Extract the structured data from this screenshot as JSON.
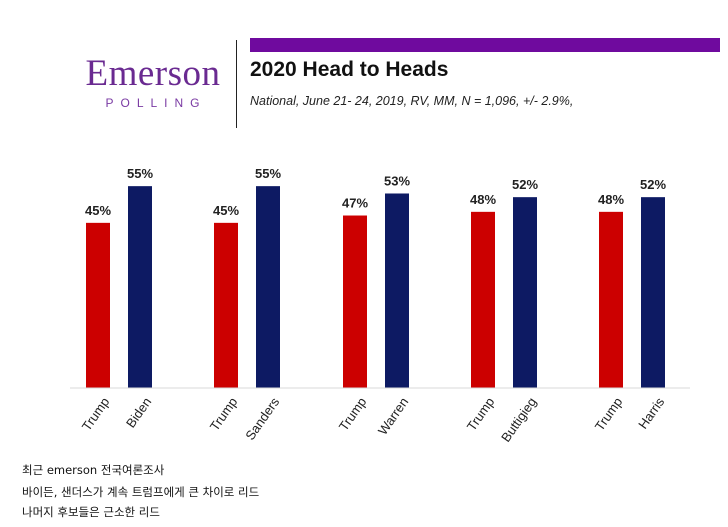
{
  "header": {
    "logo_word": "Emerson",
    "logo_sub": "POLLING",
    "title": "2020 Head to Heads",
    "subtitle": "National, June 21- 24, 2019, RV, MM, N = 1,096, +/- 2.9%,"
  },
  "colors": {
    "republican": "#cc0000",
    "democrat": "#0d1a63",
    "brand": "#6f0a9e"
  },
  "chart_data": {
    "type": "bar",
    "categories": [
      "Trump",
      "Biden",
      "Trump",
      "Sanders",
      "Trump",
      "Warren",
      "Trump",
      "Buttigieg",
      "Trump",
      "Harris"
    ],
    "values": [
      45,
      55,
      45,
      55,
      47,
      53,
      48,
      52,
      48,
      52
    ],
    "value_labels": [
      "45%",
      "55%",
      "45%",
      "55%",
      "47%",
      "53%",
      "48%",
      "52%",
      "48%",
      "52%"
    ],
    "groups": [
      {
        "names": [
          "Trump",
          "Biden"
        ],
        "values": [
          45,
          55
        ]
      },
      {
        "names": [
          "Trump",
          "Sanders"
        ],
        "values": [
          45,
          55
        ]
      },
      {
        "names": [
          "Trump",
          "Warren"
        ],
        "values": [
          47,
          53
        ]
      },
      {
        "names": [
          "Trump",
          "Buttigieg"
        ],
        "values": [
          48,
          52
        ]
      },
      {
        "names": [
          "Trump",
          "Harris"
        ],
        "values": [
          48,
          52
        ]
      }
    ],
    "ylim": [
      0,
      55
    ],
    "grid": false
  },
  "notes": [
    "최근 emerson 전국여론조사",
    "바이든, 샌더스가 계속 트럼프에게 큰 차이로 리드",
    "나머지 후보들은 근소한 리드"
  ]
}
